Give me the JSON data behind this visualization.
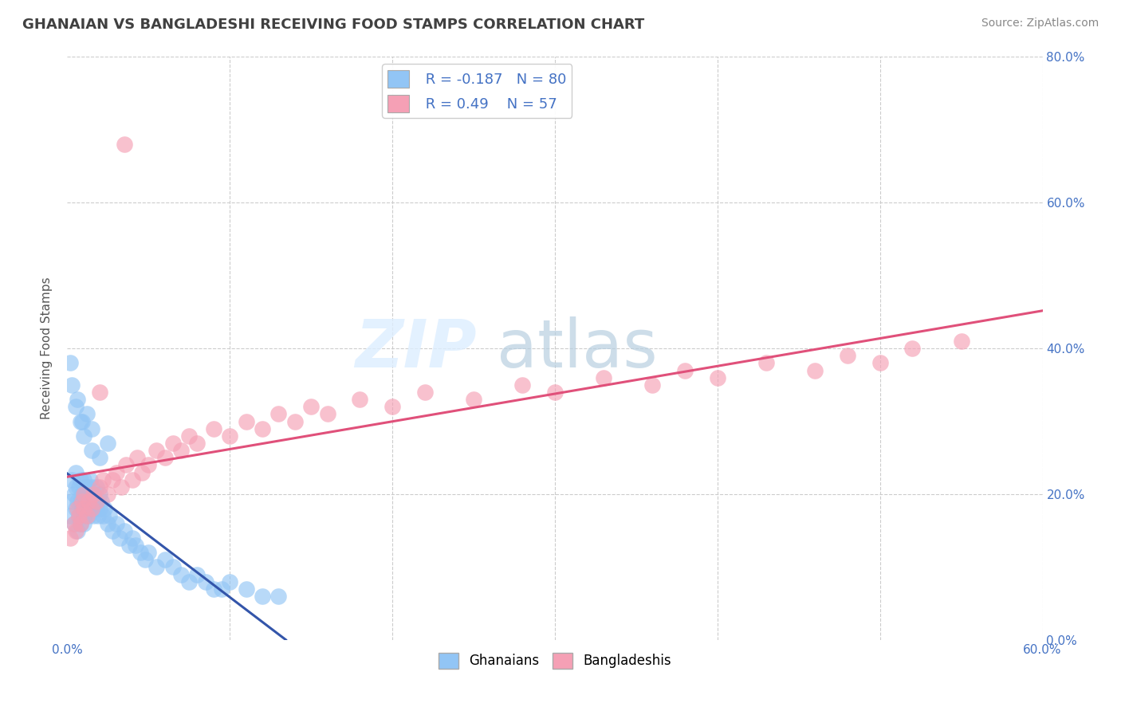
{
  "title": "GHANAIAN VS BANGLADESHI RECEIVING FOOD STAMPS CORRELATION CHART",
  "source": "Source: ZipAtlas.com",
  "ylabel": "Receiving Food Stamps",
  "xlim": [
    0.0,
    0.6
  ],
  "ylim": [
    0.0,
    0.8
  ],
  "xticks": [
    0.0,
    0.1,
    0.2,
    0.3,
    0.4,
    0.5,
    0.6
  ],
  "xtick_labels_visible": [
    "0.0%",
    "",
    "",
    "",
    "",
    "",
    "60.0%"
  ],
  "yticks": [
    0.0,
    0.2,
    0.4,
    0.6,
    0.8
  ],
  "ytick_labels": [
    "0.0%",
    "20.0%",
    "40.0%",
    "60.0%",
    "80.0%"
  ],
  "legend_labels": [
    "Ghanaians",
    "Bangladeshis"
  ],
  "ghanaian_color": "#92c5f5",
  "bangladeshi_color": "#f5a0b5",
  "trend_blue": "#3355aa",
  "trend_pink": "#e0507a",
  "R_ghanaian": -0.187,
  "N_ghanaian": 80,
  "R_bangladeshi": 0.49,
  "N_bangladeshi": 57,
  "background_color": "#ffffff",
  "grid_color": "#cccccc",
  "title_color": "#404040",
  "axis_label_color": "#4472c4",
  "ghanaian_x": [
    0.002,
    0.003,
    0.003,
    0.004,
    0.004,
    0.005,
    0.005,
    0.005,
    0.006,
    0.006,
    0.007,
    0.007,
    0.008,
    0.008,
    0.008,
    0.009,
    0.009,
    0.01,
    0.01,
    0.01,
    0.01,
    0.01,
    0.01,
    0.01,
    0.012,
    0.012,
    0.013,
    0.013,
    0.014,
    0.014,
    0.015,
    0.015,
    0.016,
    0.016,
    0.017,
    0.018,
    0.018,
    0.019,
    0.02,
    0.02,
    0.021,
    0.022,
    0.023,
    0.025,
    0.026,
    0.028,
    0.03,
    0.032,
    0.035,
    0.038,
    0.04,
    0.042,
    0.045,
    0.048,
    0.05,
    0.055,
    0.06,
    0.065,
    0.07,
    0.075,
    0.08,
    0.085,
    0.09,
    0.095,
    0.1,
    0.11,
    0.12,
    0.13,
    0.015,
    0.02,
    0.025,
    0.005,
    0.008,
    0.01,
    0.012,
    0.015,
    0.002,
    0.003,
    0.006,
    0.009
  ],
  "ghanaian_y": [
    0.17,
    0.19,
    0.22,
    0.16,
    0.2,
    0.18,
    0.21,
    0.23,
    0.15,
    0.19,
    0.17,
    0.21,
    0.16,
    0.19,
    0.22,
    0.18,
    0.2,
    0.17,
    0.19,
    0.21,
    0.16,
    0.18,
    0.2,
    0.22,
    0.18,
    0.21,
    0.17,
    0.2,
    0.19,
    0.22,
    0.18,
    0.21,
    0.17,
    0.2,
    0.19,
    0.18,
    0.21,
    0.17,
    0.2,
    0.18,
    0.19,
    0.17,
    0.18,
    0.16,
    0.17,
    0.15,
    0.16,
    0.14,
    0.15,
    0.13,
    0.14,
    0.13,
    0.12,
    0.11,
    0.12,
    0.1,
    0.11,
    0.1,
    0.09,
    0.08,
    0.09,
    0.08,
    0.07,
    0.07,
    0.08,
    0.07,
    0.06,
    0.06,
    0.26,
    0.25,
    0.27,
    0.32,
    0.3,
    0.28,
    0.31,
    0.29,
    0.38,
    0.35,
    0.33,
    0.3
  ],
  "bangladeshi_x": [
    0.002,
    0.004,
    0.005,
    0.006,
    0.007,
    0.008,
    0.009,
    0.01,
    0.01,
    0.012,
    0.013,
    0.015,
    0.016,
    0.018,
    0.02,
    0.022,
    0.025,
    0.028,
    0.03,
    0.033,
    0.036,
    0.04,
    0.043,
    0.046,
    0.05,
    0.055,
    0.06,
    0.065,
    0.07,
    0.075,
    0.08,
    0.09,
    0.1,
    0.11,
    0.12,
    0.13,
    0.14,
    0.15,
    0.16,
    0.18,
    0.2,
    0.22,
    0.25,
    0.28,
    0.3,
    0.33,
    0.36,
    0.38,
    0.4,
    0.43,
    0.46,
    0.48,
    0.5,
    0.52,
    0.55,
    0.02,
    0.035
  ],
  "bangladeshi_y": [
    0.14,
    0.16,
    0.15,
    0.18,
    0.17,
    0.16,
    0.19,
    0.18,
    0.2,
    0.17,
    0.19,
    0.18,
    0.2,
    0.19,
    0.21,
    0.22,
    0.2,
    0.22,
    0.23,
    0.21,
    0.24,
    0.22,
    0.25,
    0.23,
    0.24,
    0.26,
    0.25,
    0.27,
    0.26,
    0.28,
    0.27,
    0.29,
    0.28,
    0.3,
    0.29,
    0.31,
    0.3,
    0.32,
    0.31,
    0.33,
    0.32,
    0.34,
    0.33,
    0.35,
    0.34,
    0.36,
    0.35,
    0.37,
    0.36,
    0.38,
    0.37,
    0.39,
    0.38,
    0.4,
    0.41,
    0.34,
    0.68
  ]
}
